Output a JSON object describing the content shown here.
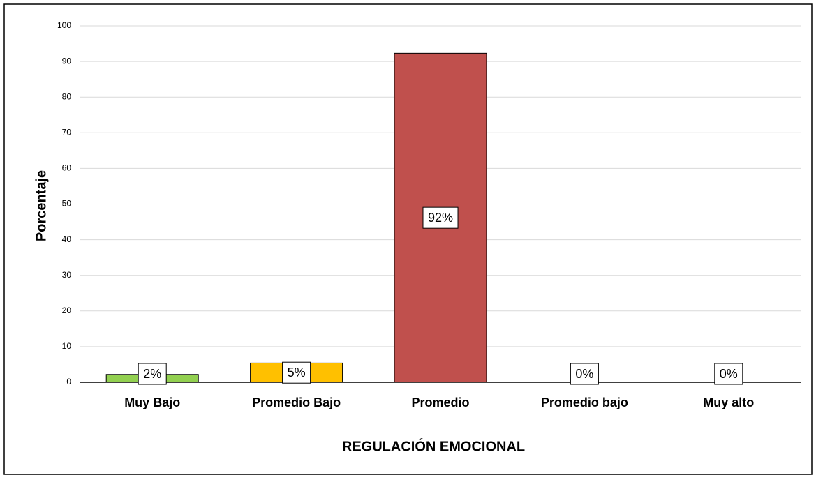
{
  "chart_data": {
    "type": "bar",
    "categories": [
      "Muy Bajo",
      "Promedio Bajo",
      "Promedio",
      "Promedio bajo",
      "Muy alto"
    ],
    "values": [
      2.2,
      5.4,
      92.3,
      0,
      0
    ],
    "value_labels": [
      "2%",
      "5%",
      "92%",
      "0%",
      "0%"
    ],
    "colors": [
      "#92d050",
      "#ffc000",
      "#c0504d",
      "#4f81bd",
      "#4f81bd"
    ],
    "x_label": "REGULACIÓN EMOCIONAL",
    "y_label": "Porcentaje",
    "ylim": [
      0,
      100
    ],
    "yticks": [
      0,
      10,
      20,
      30,
      40,
      50,
      60,
      70,
      80,
      90,
      100
    ],
    "grid": true
  }
}
